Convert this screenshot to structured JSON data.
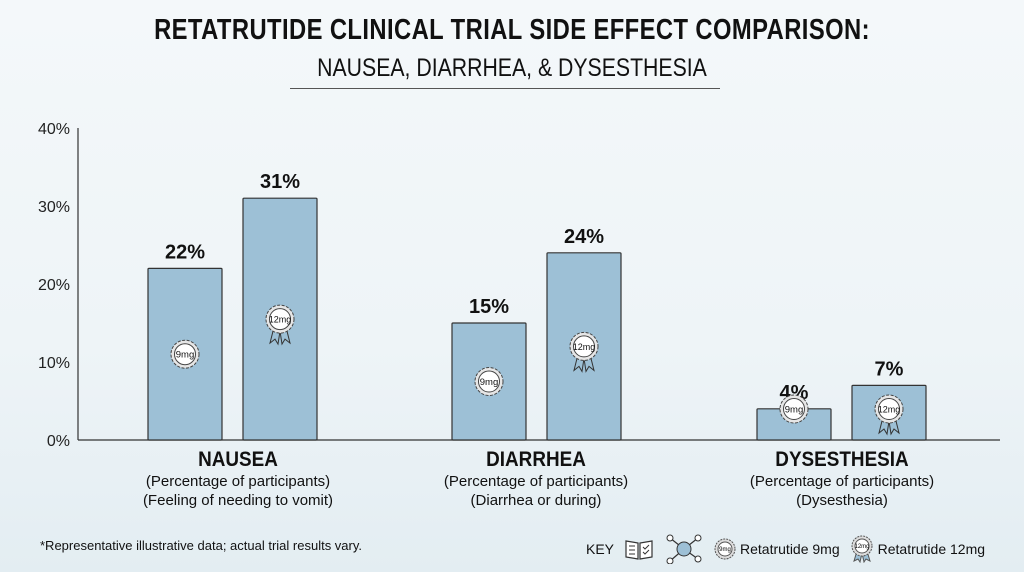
{
  "title": "RETATRUTIDE CLINICAL TRIAL SIDE EFFECT COMPARISON:",
  "subtitle": "NAUSEA, DIARRHEA, & DYSESTHESIA",
  "chart_data": {
    "type": "bar",
    "categories": [
      "NAUSEA",
      "DIARRHEA",
      "DYSESTHESIA"
    ],
    "category_sublabels": [
      [
        "(Percentage of participants)",
        "(Feeling of needing to vomit)"
      ],
      [
        "(Percentage of participants)",
        "(Diarrhea or during)"
      ],
      [
        "(Percentage of participants)",
        "(Dysesthesia)"
      ]
    ],
    "series": [
      {
        "name": "Retatrutide 9mg",
        "badge": "9mg",
        "values": [
          22,
          15,
          4
        ]
      },
      {
        "name": "Retatrutide 12mg",
        "badge": "12mg",
        "values": [
          31,
          24,
          7
        ]
      }
    ],
    "data_labels": [
      [
        "22%",
        "15%",
        "4%"
      ],
      [
        "31%",
        "24%",
        "7%"
      ]
    ],
    "yticks": [
      "0%",
      "10%",
      "20%",
      "30%",
      "40%"
    ],
    "ylim": [
      0,
      40
    ],
    "grid": false,
    "bar_color": "#9dc0d6",
    "legend_position": "bottom-right"
  },
  "footnote": "*Representative illustrative data; actual trial results vary.",
  "key": {
    "label": "KEY",
    "icons": [
      "book-checklist-icon",
      "molecule-icon"
    ],
    "items": [
      {
        "badge": "9mg",
        "label": "Retatrutide 9mg"
      },
      {
        "badge": "12mg",
        "label": "Retatrutide 12mg"
      }
    ]
  }
}
